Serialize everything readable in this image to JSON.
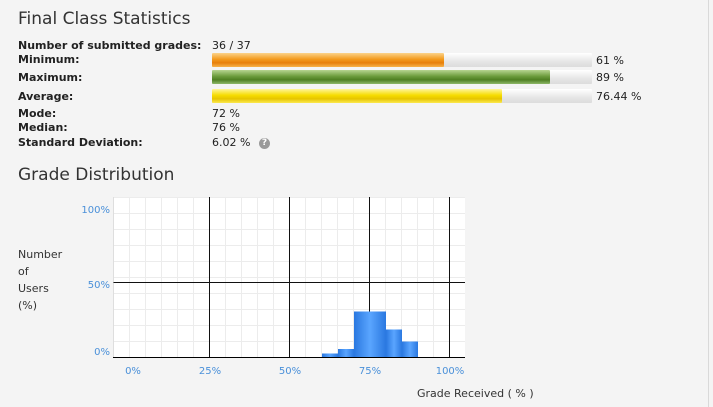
{
  "final_stats": {
    "title": "Final Class Statistics",
    "submitted_label": "Number of submitted grades:",
    "submitted_value": "36 / 37",
    "minimum_label": "Minimum:",
    "minimum_value": "61 %",
    "minimum_percent": 61,
    "maximum_label": "Maximum:",
    "maximum_value": "89 %",
    "maximum_percent": 89,
    "average_label": "Average:",
    "average_value": "76.44 %",
    "average_percent": 76.44,
    "mode_label": "Mode:",
    "mode_value": "72 %",
    "median_label": "Median:",
    "median_value": "76 %",
    "stddev_label": "Standard Deviation:",
    "stddev_value": "6.02 %",
    "help_glyph": "?"
  },
  "distribution": {
    "title": "Grade Distribution",
    "y_title_lines": [
      "Number",
      "of",
      "Users",
      "(%)"
    ],
    "x_title": "Grade Received ( % )"
  },
  "chart_data": {
    "type": "bar",
    "title": "Grade Distribution",
    "xlabel": "Grade Received ( % )",
    "ylabel": "Number of Users (%)",
    "x_ticks": [
      "0%",
      "25%",
      "50%",
      "75%",
      "100%"
    ],
    "y_ticks": [
      "0%",
      "50%",
      "100%"
    ],
    "xlim": [
      0,
      100
    ],
    "ylim": [
      0,
      100
    ],
    "grid": true,
    "color": "#3f8ff0",
    "bins": [
      {
        "from": 60,
        "to": 65,
        "value": 3
      },
      {
        "from": 65,
        "to": 70,
        "value": 6
      },
      {
        "from": 70,
        "to": 80,
        "value": 31
      },
      {
        "from": 80,
        "to": 85,
        "value": 19
      },
      {
        "from": 85,
        "to": 90,
        "value": 11
      }
    ]
  },
  "colors": {
    "minimum_bar": "#f39a1c",
    "maximum_bar": "#6c9c3c",
    "average_bar": "#f6dc00",
    "axis_ticks": "#4a90d9"
  }
}
